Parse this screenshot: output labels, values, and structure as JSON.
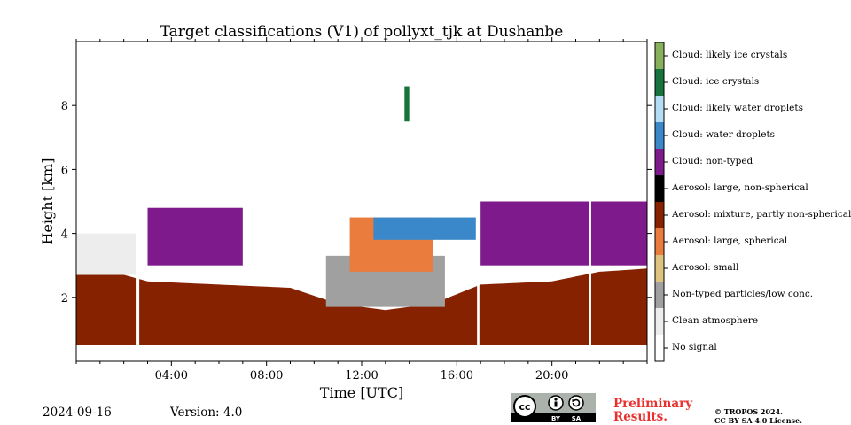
{
  "chart_data": {
    "type": "heatmap",
    "title": "Target classifications (V1) of pollyxt_tjk at Dushanbe",
    "xlabel": "Time [UTC]",
    "ylabel": "Height [km]",
    "xlim_hours": [
      0,
      24
    ],
    "ylim_km": [
      0,
      10
    ],
    "x_ticks": [
      {
        "value": 4,
        "label": "04:00"
      },
      {
        "value": 8,
        "label": "08:00"
      },
      {
        "value": 12,
        "label": "12:00"
      },
      {
        "value": 16,
        "label": "16:00"
      },
      {
        "value": 20,
        "label": "20:00"
      }
    ],
    "y_ticks": [
      {
        "value": 2,
        "label": "2"
      },
      {
        "value": 4,
        "label": "4"
      },
      {
        "value": 6,
        "label": "6"
      },
      {
        "value": 8,
        "label": "8"
      }
    ],
    "classes": [
      {
        "label": "No signal",
        "color": "#ffffff"
      },
      {
        "label": "Clean atmosphere",
        "color": "#ededed"
      },
      {
        "label": "Non-typed particles/low conc.",
        "color": "#a0a0a0"
      },
      {
        "label": "Aerosol: small",
        "color": "#ddc37d"
      },
      {
        "label": "Aerosol: large, spherical",
        "color": "#ea7c3e"
      },
      {
        "label": "Aerosol: mixture, partly non-spherical",
        "color": "#862200"
      },
      {
        "label": "Aerosol: large, non-spherical",
        "color": "#000000"
      },
      {
        "label": "Cloud: non-typed",
        "color": "#7f1a8c"
      },
      {
        "label": "Cloud: water droplets",
        "color": "#3a88c9"
      },
      {
        "label": "Cloud: likely water droplets",
        "color": "#b3dcf5"
      },
      {
        "label": "Cloud: ice crystals",
        "color": "#16733b"
      },
      {
        "label": "Cloud: likely ice crystals",
        "color": "#86b05a"
      }
    ],
    "data_gaps_hours": [
      [
        2.5,
        2.65
      ],
      [
        16.85,
        16.95
      ],
      [
        21.55,
        21.65
      ]
    ],
    "regions": [
      {
        "class": "Aerosol: mixture, partly non-spherical",
        "t_start": 0,
        "t_end": 24,
        "h_bottom": 0.5,
        "h_top_profile": [
          [
            0,
            2.7
          ],
          [
            2,
            2.7
          ],
          [
            3,
            2.5
          ],
          [
            6,
            2.4
          ],
          [
            9,
            2.3
          ],
          [
            11,
            1.8
          ],
          [
            13,
            1.6
          ],
          [
            15,
            1.8
          ],
          [
            17,
            2.4
          ],
          [
            20,
            2.5
          ],
          [
            22,
            2.8
          ],
          [
            24,
            2.9
          ]
        ]
      },
      {
        "class": "Clean atmosphere",
        "t_start": 0,
        "t_end": 2.5,
        "h_bottom": 2.7,
        "h_top": 4.0
      },
      {
        "class": "Non-typed particles/low conc.",
        "t_start": 10.5,
        "t_end": 15.5,
        "h_bottom": 1.7,
        "h_top": 3.3
      },
      {
        "class": "Aerosol: large, spherical",
        "t_start": 11.5,
        "t_end": 15.0,
        "h_bottom": 2.8,
        "h_top": 4.5
      },
      {
        "class": "Cloud: non-typed",
        "t_start": 3.0,
        "t_end": 7.0,
        "h_bottom": 3.0,
        "h_top": 4.8
      },
      {
        "class": "Cloud: non-typed",
        "t_start": 17.0,
        "t_end": 24.0,
        "h_bottom": 3.0,
        "h_top": 5.0
      },
      {
        "class": "Cloud: water droplets",
        "t_start": 12.5,
        "t_end": 16.8,
        "h_bottom": 3.8,
        "h_top": 4.5
      },
      {
        "class": "Cloud: ice crystals",
        "t_start": 13.8,
        "t_end": 14.0,
        "h_bottom": 7.5,
        "h_top": 8.6
      }
    ]
  },
  "footer": {
    "date": "2024-09-16",
    "version": "Version: 4.0",
    "preliminary": [
      "Preliminary",
      "Results."
    ],
    "copyright": [
      "© TROPOS 2024.",
      "CC BY SA 4.0 License."
    ],
    "license_badge": {
      "cc": "cc",
      "by": "BY",
      "sa": "SA"
    }
  }
}
